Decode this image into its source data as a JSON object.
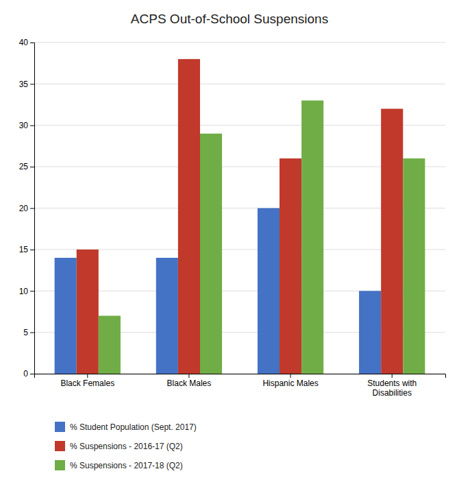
{
  "chart_data": {
    "type": "bar",
    "title": "ACPS Out-of-School Suspensions",
    "categories": [
      "Black Females",
      "Black Males",
      "Hispanic Males",
      "Students with\nDisabilities"
    ],
    "series": [
      {
        "name": "% Student Population (Sept. 2017)",
        "color": "#4472C4",
        "values": [
          14,
          14,
          20,
          10
        ]
      },
      {
        "name": "% Suspensions - 2016-17 (Q2)",
        "color": "#C0392B",
        "values": [
          15,
          38,
          26,
          32
        ]
      },
      {
        "name": "% Suspensions - 2017-18 (Q2)",
        "color": "#70AD47",
        "values": [
          7,
          29,
          33,
          26
        ]
      }
    ],
    "ylim": [
      0,
      40
    ],
    "yticks": [
      0,
      5,
      10,
      15,
      20,
      25,
      30,
      35,
      40
    ],
    "grid": true,
    "legend": "bottom"
  }
}
